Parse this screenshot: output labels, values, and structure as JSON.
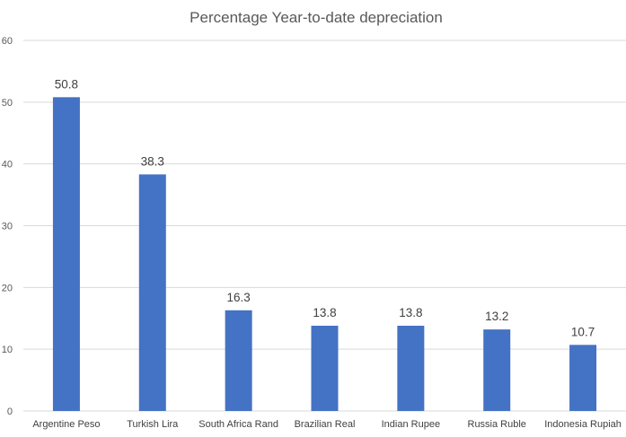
{
  "chart_data": {
    "type": "bar",
    "title": "Percentage Year-to-date depreciation",
    "xlabel": "",
    "ylabel": "",
    "categories": [
      "Argentine Peso",
      "Turkish Lira",
      "South Africa Rand",
      "Brazilian Real",
      "Indian Rupee",
      "Russia Ruble",
      "Indonesia Rupiah"
    ],
    "values": [
      50.8,
      38.3,
      16.3,
      13.8,
      13.8,
      13.2,
      10.7
    ],
    "data_labels": [
      "50.8",
      "38.3",
      "16.3",
      "13.8",
      "13.8",
      "13.2",
      "10.7"
    ],
    "ylim": [
      0,
      60
    ],
    "yticks": [
      "0",
      "10",
      "20",
      "30",
      "40",
      "50",
      "60"
    ],
    "grid": true,
    "legend": "none",
    "bar_color": "#4472C4"
  }
}
